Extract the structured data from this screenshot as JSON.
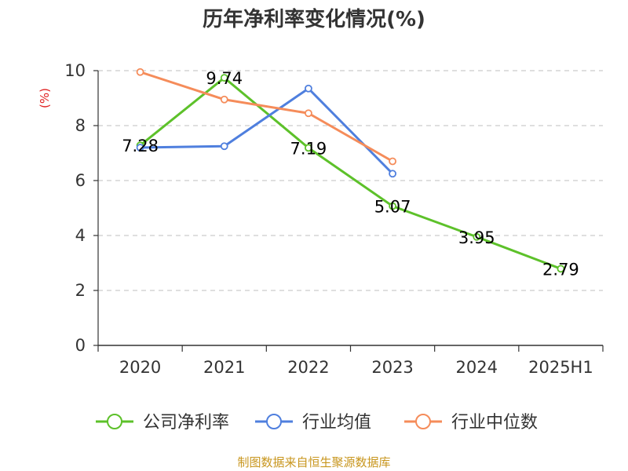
{
  "chart_data": {
    "type": "line",
    "title": "历年净利率变化情况(%)",
    "ylabel": "(%)",
    "xlabel": "",
    "categories": [
      "2020",
      "2021",
      "2022",
      "2023",
      "2024",
      "2025H1"
    ],
    "ylim": [
      0,
      10
    ],
    "yticks": [
      0,
      2,
      4,
      6,
      8,
      10
    ],
    "grid": true,
    "legend_position": "bottom",
    "series": [
      {
        "name": "公司净利率",
        "color": "#5dc12a",
        "values": [
          7.28,
          9.74,
          7.19,
          5.07,
          3.95,
          2.79
        ],
        "labels": [
          "7.28",
          "9.74",
          "7.19",
          "5.07",
          "3.95",
          "2.79"
        ]
      },
      {
        "name": "行业均值",
        "color": "#4f7fde",
        "values": [
          7.2,
          7.25,
          9.35,
          6.25,
          null,
          null
        ]
      },
      {
        "name": "行业中位数",
        "color": "#f58c5a",
        "values": [
          9.95,
          8.95,
          8.45,
          6.7,
          null,
          null
        ]
      }
    ]
  },
  "source_note": "制图数据来自恒生聚源数据库"
}
